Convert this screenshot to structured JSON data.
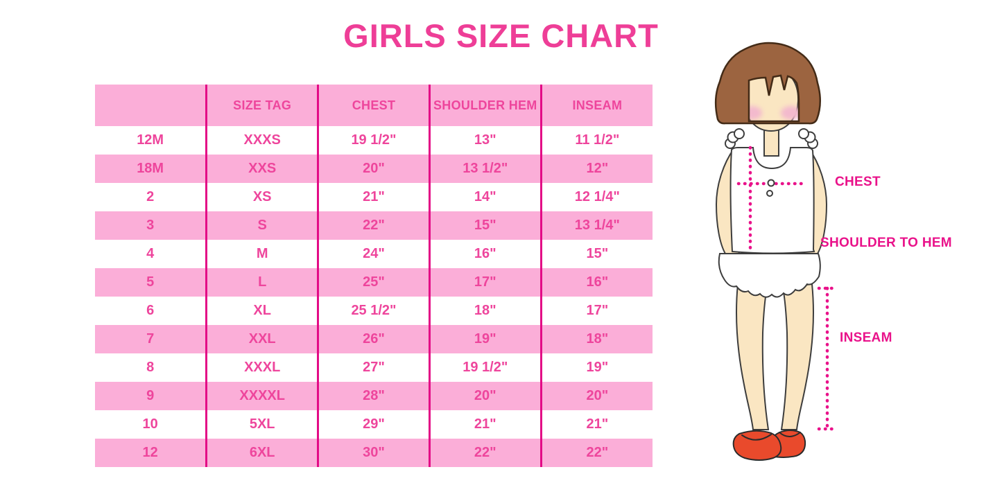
{
  "title": "GIRLS SIZE CHART",
  "colors": {
    "background": "#ffffff",
    "title_pink": "#ee3e97",
    "table_text_pink": "#ee459c",
    "grid_magenta": "#e30b86",
    "row_pink": "#fbaed8",
    "row_white": "#ffffff",
    "label_magenta": "#e9128a",
    "dot_magenta": "#e9128a",
    "hair_brown": "#9c6440",
    "hair_outline": "#432b17",
    "skin_cream": "#fae6c2",
    "blush_pink": "#f3b9cd",
    "garment_white": "#ffffff",
    "outline_dark": "#3d3d3d",
    "shoe_red": "#e94a2c"
  },
  "table": {
    "columns": [
      "",
      "SIZE TAG",
      "CHEST",
      "SHOULDER HEM",
      "INSEAM"
    ],
    "rows": [
      [
        "12M",
        "XXXS",
        "19 1/2\"",
        "13\"",
        "11 1/2\""
      ],
      [
        "18M",
        "XXS",
        "20\"",
        "13 1/2\"",
        "12\""
      ],
      [
        "2",
        "XS",
        "21\"",
        "14\"",
        "12 1/4\""
      ],
      [
        "3",
        "S",
        "22\"",
        "15\"",
        "13 1/4\""
      ],
      [
        "4",
        "M",
        "24\"",
        "16\"",
        "15\""
      ],
      [
        "5",
        "L",
        "25\"",
        "17\"",
        "16\""
      ],
      [
        "6",
        "XL",
        "25 1/2\"",
        "18\"",
        "17\""
      ],
      [
        "7",
        "XXL",
        "26\"",
        "19\"",
        "18\""
      ],
      [
        "8",
        "XXXL",
        "27\"",
        "19 1/2\"",
        "19\""
      ],
      [
        "9",
        "XXXXL",
        "28\"",
        "20\"",
        "20\""
      ],
      [
        "10",
        "5XL",
        "29\"",
        "21\"",
        "21\""
      ],
      [
        "12",
        "6XL",
        "30\"",
        "22\"",
        "22\""
      ]
    ]
  },
  "diagram": {
    "chest_label": "CHEST",
    "shoulder_to_hem_label": "SHOULDER TO HEM",
    "inseam_label": "INSEAM"
  }
}
